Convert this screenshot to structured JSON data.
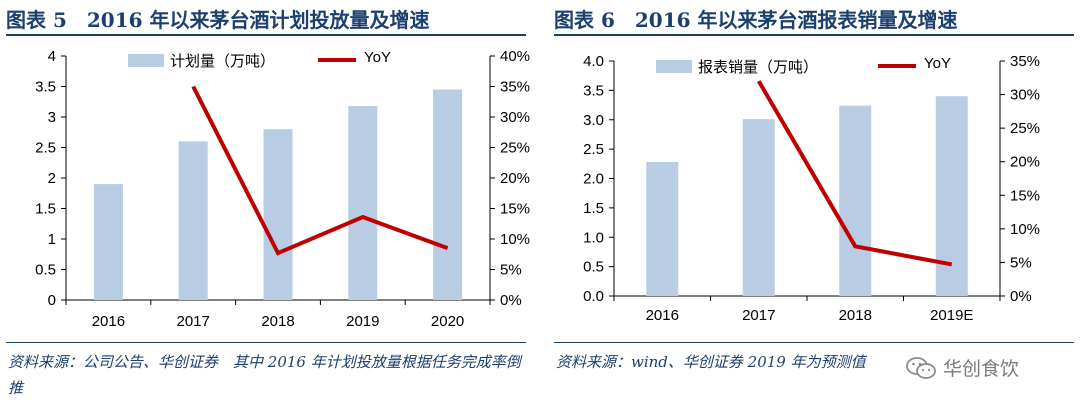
{
  "figure5": {
    "title": "图表 5　2016 年以来茅台酒计划投放量及增速",
    "source": "资料来源：公司公告、华创证券　其中 2016 年计划投放量根据任务完成率倒推"
  },
  "figure6": {
    "title": "图表 6　2016 年以来茅台酒报表销量及增速",
    "source": "资料来源：wind、华创证券 2019 年为预测值"
  },
  "watermark": {
    "text": "华创食饮",
    "icon": "wechat-icon"
  },
  "colors": {
    "bar": "#b8cce4",
    "line": "#c00000",
    "title": "#1c3f6e"
  },
  "chart_data": [
    {
      "type": "bar",
      "categories": [
        "2016",
        "2017",
        "2018",
        "2019",
        "2020"
      ],
      "series": [
        {
          "name": "计划量（万吨）",
          "type": "bar",
          "axis": "left",
          "values": [
            1.9,
            2.6,
            2.8,
            3.18,
            3.45
          ]
        },
        {
          "name": "YoY",
          "type": "line",
          "axis": "right",
          "values": [
            null,
            0.35,
            0.077,
            0.136,
            0.085
          ]
        }
      ],
      "ylim": [
        0,
        4
      ],
      "y_ticks": [
        "0",
        "0.5",
        "1",
        "1.5",
        "2",
        "2.5",
        "3",
        "3.5",
        "4"
      ],
      "y2lim": [
        0,
        0.4
      ],
      "y2_ticks": [
        "0%",
        "5%",
        "10%",
        "15%",
        "20%",
        "25%",
        "30%",
        "35%",
        "40%"
      ],
      "legend": "top"
    },
    {
      "type": "bar",
      "categories": [
        "2016",
        "2017",
        "2018",
        "2019E"
      ],
      "series": [
        {
          "name": "报表销量（万吨）",
          "type": "bar",
          "axis": "left",
          "values": [
            2.28,
            3.01,
            3.24,
            3.4
          ]
        },
        {
          "name": "YoY",
          "type": "line",
          "axis": "right",
          "values": [
            null,
            0.32,
            0.074,
            0.047
          ]
        }
      ],
      "ylim": [
        0,
        4
      ],
      "y_ticks": [
        "0.0",
        "0.5",
        "1.0",
        "1.5",
        "2.0",
        "2.5",
        "3.0",
        "3.5",
        "4.0"
      ],
      "y2lim": [
        0,
        0.35
      ],
      "y2_ticks": [
        "0%",
        "5%",
        "10%",
        "15%",
        "20%",
        "25%",
        "30%",
        "35%"
      ],
      "legend": "top"
    }
  ]
}
